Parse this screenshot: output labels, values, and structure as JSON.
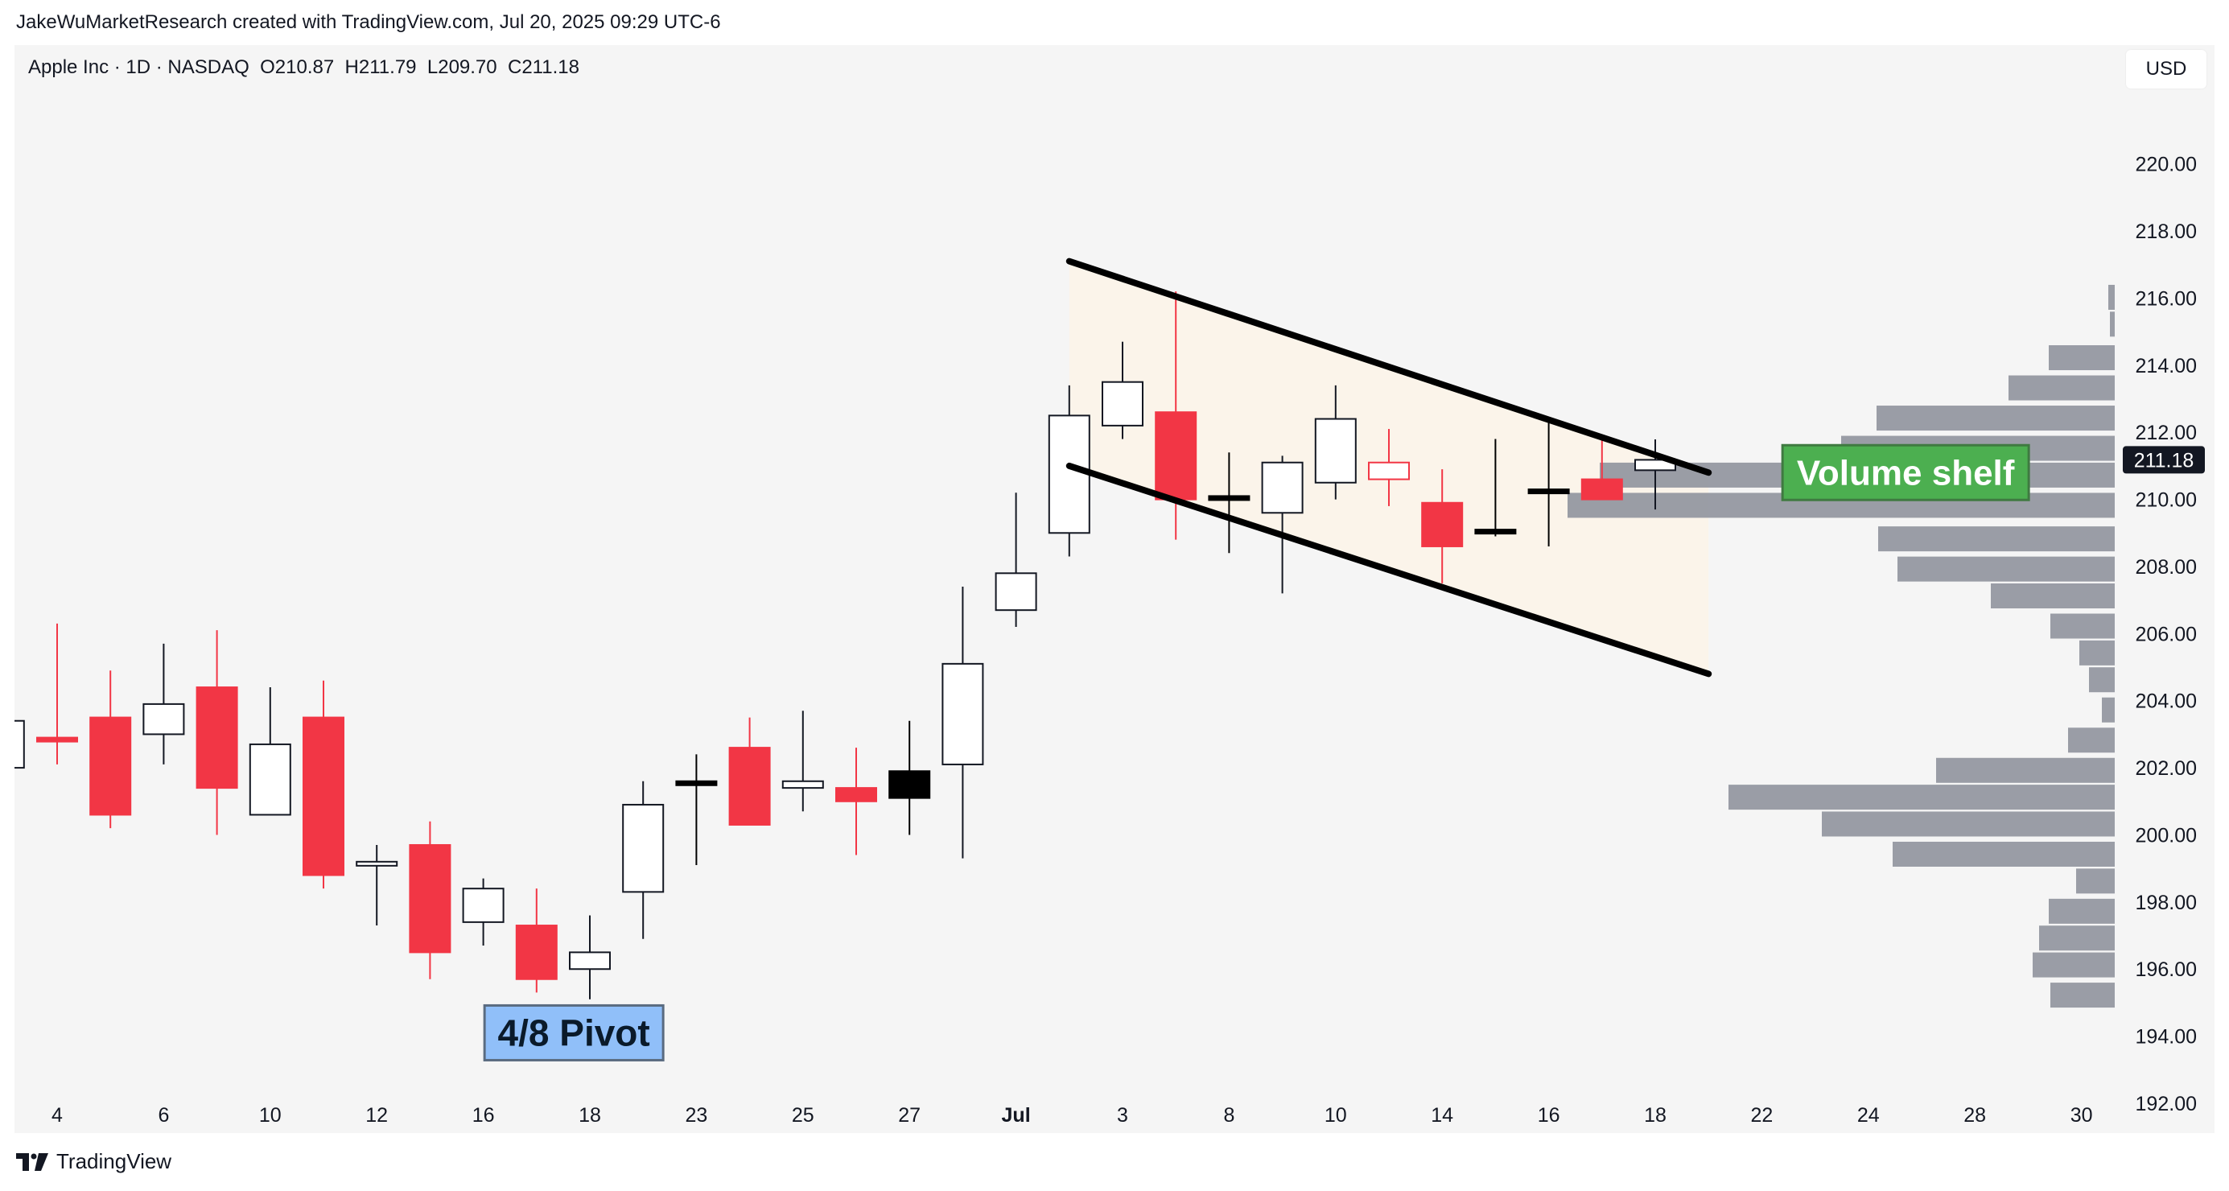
{
  "caption": "JakeWuMarketResearch created with TradingView.com, Jul 20, 2025 09:29 UTC-6",
  "brand": "TradingView",
  "symbol": {
    "name": "Apple Inc",
    "interval": "1D",
    "exchange": "NASDAQ",
    "open_label": "O",
    "open": "210.87",
    "high_label": "H",
    "high": "211.79",
    "low_label": "L",
    "low": "209.70",
    "close_label": "C",
    "close": "211.18"
  },
  "currency": "USD",
  "colors": {
    "up": "#ffffff",
    "up_border": "#131722",
    "down": "#f23645",
    "channel_fill": "#fbf4ea",
    "volume_bar": "#9598a1",
    "pivot_label_bg": "#90bff9",
    "shelf_label_bg": "#4caf50",
    "price_tag_bg": "#131722"
  },
  "chart_data": {
    "type": "candlestick",
    "title": "Apple Inc · 1D · NASDAQ",
    "ylim": [
      191.4,
      222.2
    ],
    "y_ticks": [
      "220.00",
      "218.00",
      "216.00",
      "214.00",
      "212.00",
      "210.00",
      "208.00",
      "206.00",
      "204.00",
      "202.00",
      "200.00",
      "198.00",
      "196.00",
      "194.00",
      "192.00"
    ],
    "x_ticks": [
      {
        "label": "4",
        "i": 0
      },
      {
        "label": "6",
        "i": 2
      },
      {
        "label": "10",
        "i": 4
      },
      {
        "label": "12",
        "i": 6
      },
      {
        "label": "16",
        "i": 8
      },
      {
        "label": "18",
        "i": 10
      },
      {
        "label": "23",
        "i": 12
      },
      {
        "label": "25",
        "i": 14
      },
      {
        "label": "27",
        "i": 16
      },
      {
        "label": "Jul",
        "i": 18
      },
      {
        "label": "3",
        "i": 20
      },
      {
        "label": "8",
        "i": 22
      },
      {
        "label": "10",
        "i": 24
      },
      {
        "label": "14",
        "i": 26
      },
      {
        "label": "16",
        "i": 28
      },
      {
        "label": "18",
        "i": 30
      },
      {
        "label": "22",
        "i": 32
      },
      {
        "label": "24",
        "i": 34
      },
      {
        "label": "28",
        "i": 36
      },
      {
        "label": "30",
        "i": 38
      }
    ],
    "candles": [
      {
        "i": -1,
        "o": 202.0,
        "h": 203.5,
        "l": 201.6,
        "c": 203.4,
        "color": "up"
      },
      {
        "i": 0,
        "o": 202.9,
        "h": 206.3,
        "l": 202.1,
        "c": 202.9,
        "color": "down"
      },
      {
        "i": 1,
        "o": 203.5,
        "h": 204.9,
        "l": 200.2,
        "c": 200.6,
        "color": "down"
      },
      {
        "i": 2,
        "o": 203.0,
        "h": 205.7,
        "l": 202.1,
        "c": 203.9,
        "color": "up"
      },
      {
        "i": 3,
        "o": 204.4,
        "h": 206.1,
        "l": 200.0,
        "c": 201.4,
        "color": "down"
      },
      {
        "i": 4,
        "o": 200.6,
        "h": 204.4,
        "l": 200.6,
        "c": 202.7,
        "color": "up"
      },
      {
        "i": 5,
        "o": 203.5,
        "h": 204.6,
        "l": 198.4,
        "c": 198.8,
        "color": "down"
      },
      {
        "i": 6,
        "o": 199.1,
        "h": 199.7,
        "l": 197.3,
        "c": 199.2,
        "color": "up"
      },
      {
        "i": 7,
        "o": 199.7,
        "h": 200.4,
        "l": 195.7,
        "c": 196.5,
        "color": "down"
      },
      {
        "i": 8,
        "o": 197.4,
        "h": 198.7,
        "l": 196.7,
        "c": 198.4,
        "color": "up"
      },
      {
        "i": 9,
        "o": 197.3,
        "h": 198.4,
        "l": 195.3,
        "c": 195.7,
        "color": "down"
      },
      {
        "i": 10,
        "o": 196.0,
        "h": 197.6,
        "l": 195.1,
        "c": 196.5,
        "color": "up"
      },
      {
        "i": 11,
        "o": 198.3,
        "h": 201.6,
        "l": 196.9,
        "c": 200.9,
        "color": "up"
      },
      {
        "i": 12,
        "o": 201.5,
        "h": 202.4,
        "l": 199.1,
        "c": 201.6,
        "color": "black"
      },
      {
        "i": 13,
        "o": 202.6,
        "h": 203.5,
        "l": 200.3,
        "c": 200.3,
        "color": "down"
      },
      {
        "i": 14,
        "o": 201.4,
        "h": 203.7,
        "l": 200.7,
        "c": 201.6,
        "color": "up"
      },
      {
        "i": 15,
        "o": 201.4,
        "h": 202.6,
        "l": 199.4,
        "c": 201.0,
        "color": "down"
      },
      {
        "i": 16,
        "o": 201.1,
        "h": 203.4,
        "l": 200.0,
        "c": 201.9,
        "color": "black"
      },
      {
        "i": 17,
        "o": 202.1,
        "h": 207.4,
        "l": 199.3,
        "c": 205.1,
        "color": "up"
      },
      {
        "i": 18,
        "o": 206.7,
        "h": 210.2,
        "l": 206.2,
        "c": 207.8,
        "color": "up"
      },
      {
        "i": 19,
        "o": 209.0,
        "h": 213.4,
        "l": 208.3,
        "c": 212.5,
        "color": "up"
      },
      {
        "i": 20,
        "o": 212.2,
        "h": 214.7,
        "l": 211.8,
        "c": 213.5,
        "color": "up"
      },
      {
        "i": 21,
        "o": 212.6,
        "h": 216.2,
        "l": 208.8,
        "c": 210.0,
        "color": "down"
      },
      {
        "i": 22,
        "o": 210.1,
        "h": 211.4,
        "l": 208.4,
        "c": 210.1,
        "color": "black"
      },
      {
        "i": 23,
        "o": 209.6,
        "h": 211.3,
        "l": 207.2,
        "c": 211.1,
        "color": "up"
      },
      {
        "i": 24,
        "o": 210.5,
        "h": 213.4,
        "l": 210.0,
        "c": 212.4,
        "color": "up"
      },
      {
        "i": 25,
        "o": 211.1,
        "h": 212.1,
        "l": 209.8,
        "c": 210.6,
        "color": "down_outline"
      },
      {
        "i": 26,
        "o": 209.9,
        "h": 210.9,
        "l": 207.5,
        "c": 208.6,
        "color": "down"
      },
      {
        "i": 27,
        "o": 209.0,
        "h": 211.8,
        "l": 208.9,
        "c": 209.1,
        "color": "black"
      },
      {
        "i": 28,
        "o": 210.3,
        "h": 212.3,
        "l": 208.6,
        "c": 210.3,
        "color": "black"
      },
      {
        "i": 29,
        "o": 210.6,
        "h": 211.8,
        "l": 210.0,
        "c": 210.0,
        "color": "down"
      },
      {
        "i": 30,
        "o": 210.87,
        "h": 211.79,
        "l": 209.7,
        "c": 211.18,
        "color": "up"
      }
    ],
    "channel": {
      "upper": {
        "start_i": 19.0,
        "start_p": 217.1,
        "end_i": 31.0,
        "end_p": 210.8
      },
      "lower": {
        "start_i": 19.0,
        "start_p": 211.0,
        "end_i": 31.0,
        "end_p": 204.8
      },
      "fill_start_i": 19.0,
      "fill_end_i": 31.0
    },
    "volume_profile": [
      {
        "price": 216.0,
        "length": 8
      },
      {
        "price": 215.2,
        "length": 6
      },
      {
        "price": 214.2,
        "length": 82
      },
      {
        "price": 213.3,
        "length": 132
      },
      {
        "price": 212.4,
        "length": 296
      },
      {
        "price": 211.5,
        "length": 340
      },
      {
        "price": 210.7,
        "length": 640
      },
      {
        "price": 209.8,
        "length": 680
      },
      {
        "price": 208.8,
        "length": 294
      },
      {
        "price": 207.9,
        "length": 270
      },
      {
        "price": 207.1,
        "length": 154
      },
      {
        "price": 206.2,
        "length": 80
      },
      {
        "price": 205.4,
        "length": 44
      },
      {
        "price": 204.6,
        "length": 32
      },
      {
        "price": 203.7,
        "length": 16
      },
      {
        "price": 202.8,
        "length": 58
      },
      {
        "price": 201.9,
        "length": 222
      },
      {
        "price": 201.1,
        "length": 480
      },
      {
        "price": 200.3,
        "length": 364
      },
      {
        "price": 199.4,
        "length": 276
      },
      {
        "price": 198.6,
        "length": 48
      },
      {
        "price": 197.7,
        "length": 82
      },
      {
        "price": 196.9,
        "length": 94
      },
      {
        "price": 196.1,
        "length": 102
      },
      {
        "price": 195.2,
        "length": 80
      }
    ],
    "annotations": [
      {
        "name": "pivot-label",
        "text": "4/8 Pivot",
        "i": 9.7,
        "price": 194.1
      },
      {
        "name": "volume-shelf-label",
        "text": "Volume shelf",
        "i": 34.7,
        "price": 210.8
      }
    ],
    "last_price": "211.18"
  }
}
